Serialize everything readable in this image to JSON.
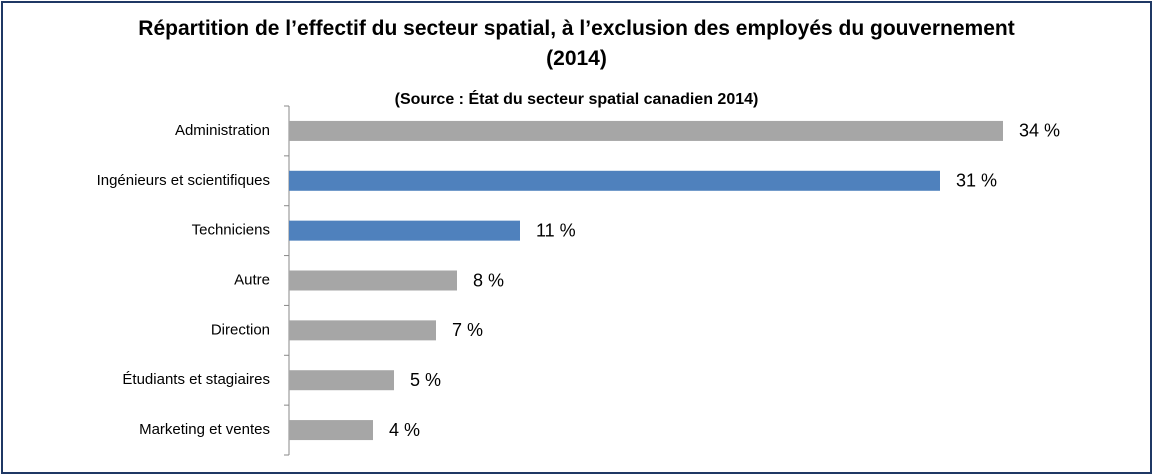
{
  "chart_data": {
    "type": "bar",
    "orientation": "horizontal",
    "title": "Répartition de l’effectif du secteur spatial, à l’exclusion des employés du gouvernement (2014)",
    "subtitle": "(Source : État du secteur spatial canadien 2014)",
    "categories": [
      "Administration",
      "Ingénieurs et scientifiques",
      "Techniciens",
      "Autre",
      "Direction",
      "Étudiants et stagiaires",
      "Marketing et ventes"
    ],
    "values": [
      34,
      31,
      11,
      8,
      7,
      5,
      4
    ],
    "value_labels": [
      "34 %",
      "31 %",
      "11 %",
      "8 %",
      "7 %",
      "5 %",
      "4 %"
    ],
    "colors": [
      "#a6a6a6",
      "#4f81bd",
      "#4f81bd",
      "#a6a6a6",
      "#a6a6a6",
      "#a6a6a6",
      "#a6a6a6"
    ]
  }
}
